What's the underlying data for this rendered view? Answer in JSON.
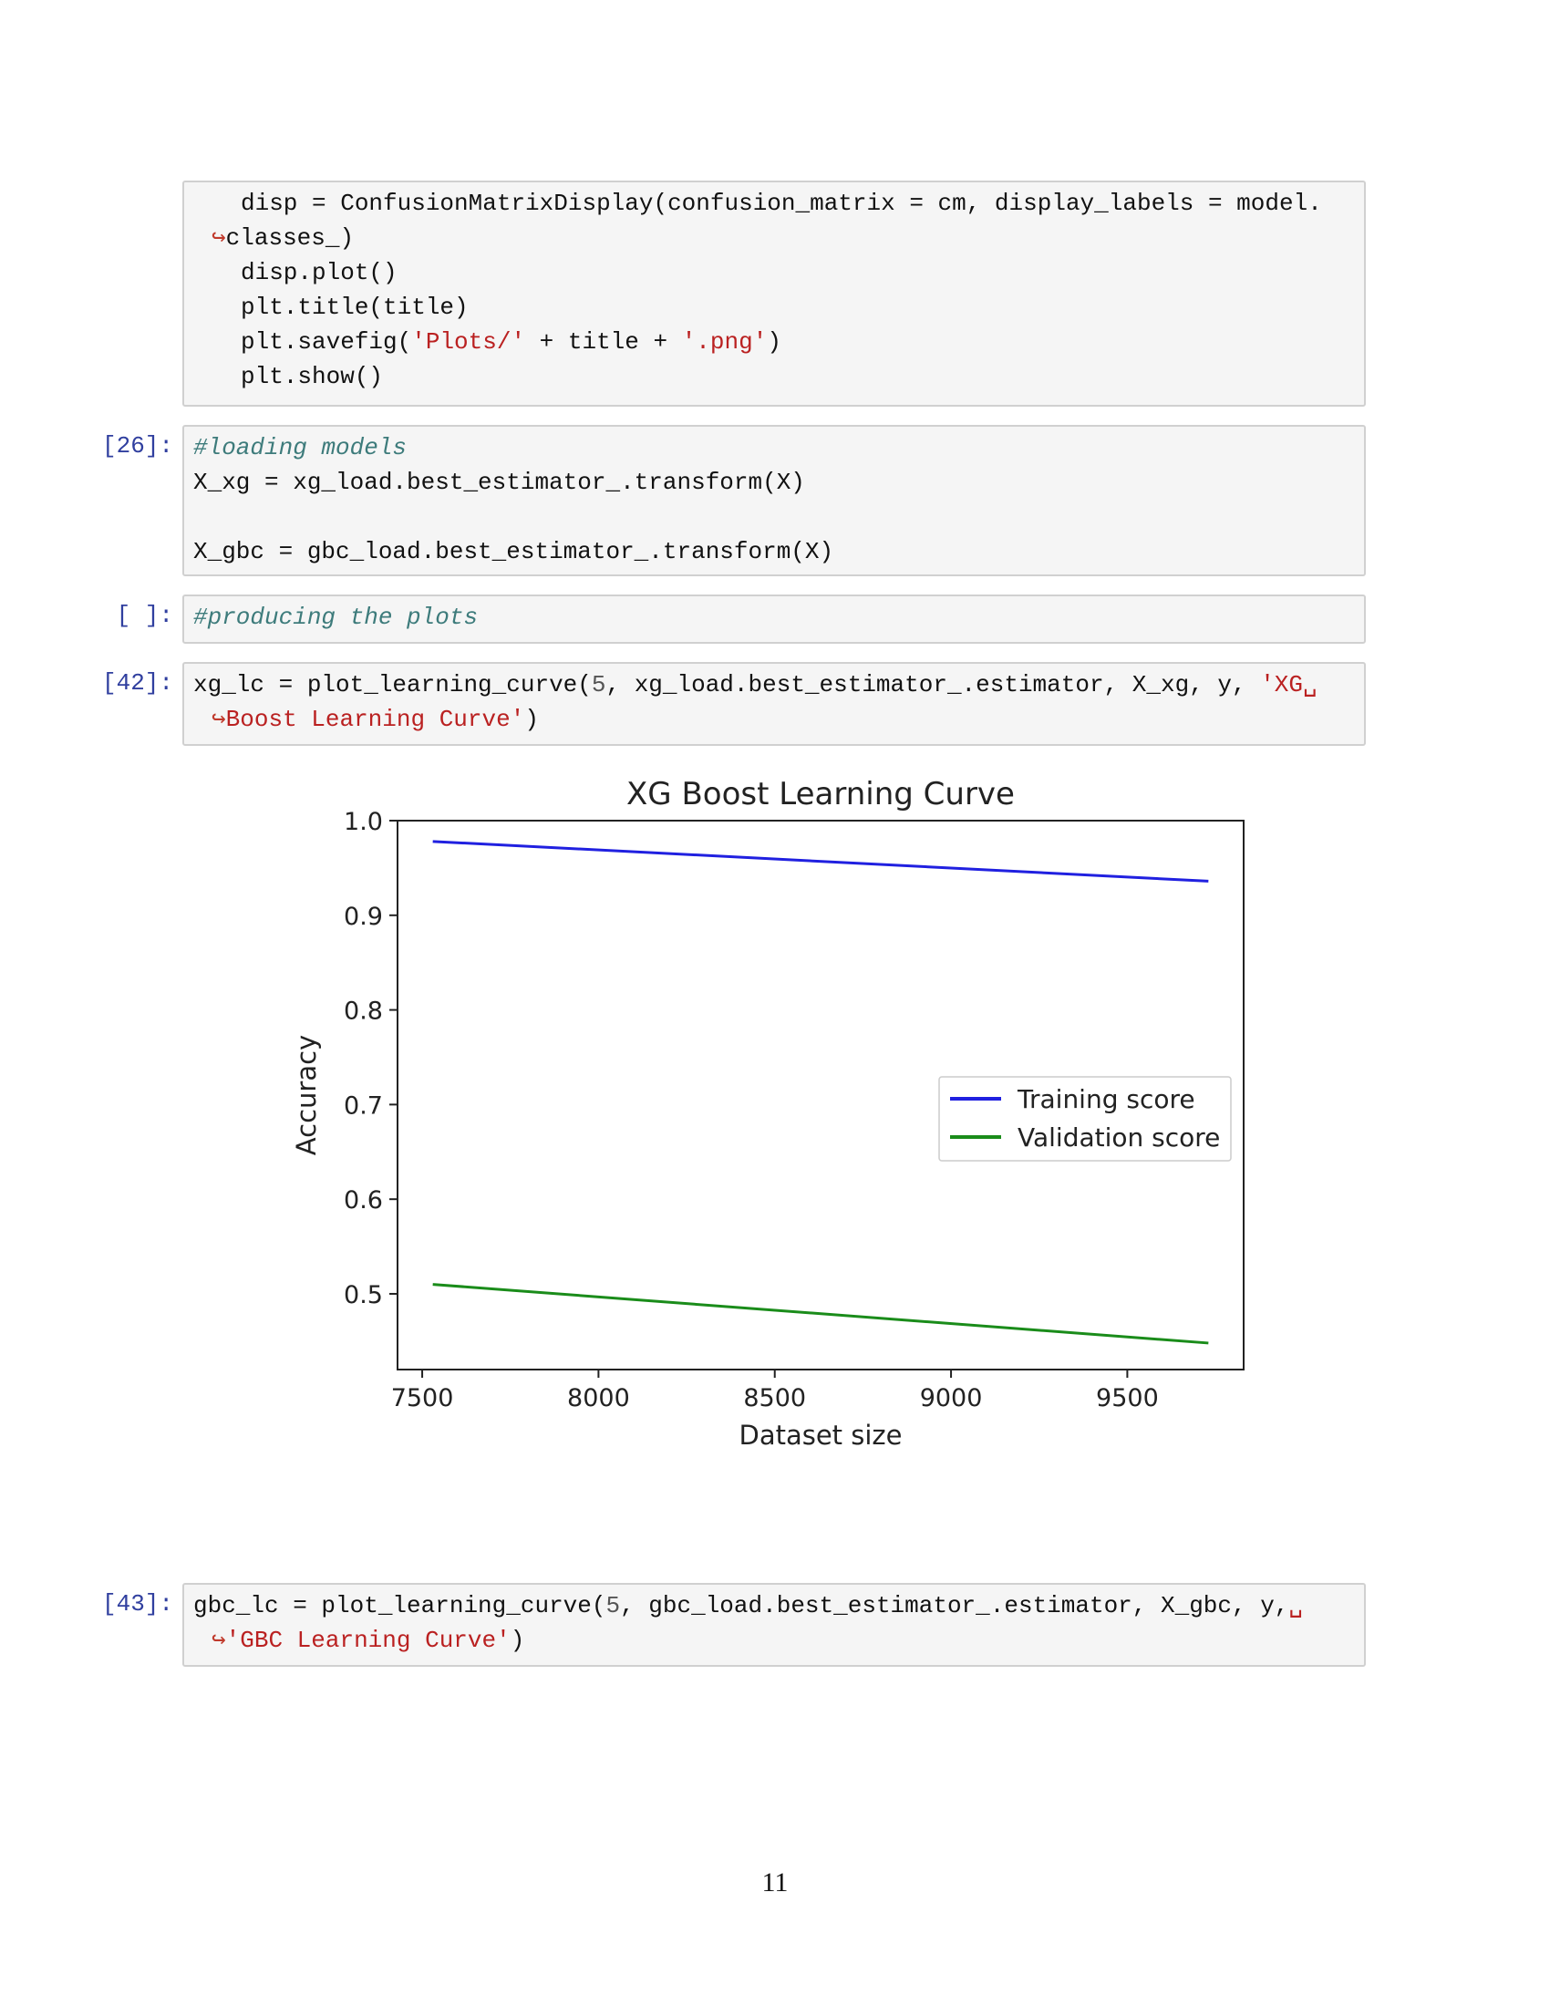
{
  "cells": {
    "cell0": {
      "line1": "disp = ConfusionMatrixDisplay(confusion_matrix = cm, display_labels = model.",
      "cont_arrow": "↪",
      "line1b": "classes_)",
      "line2": "disp.plot()",
      "line3": "plt.title(title)",
      "line4a": "plt.savefig(",
      "line4b": "'Plots/'",
      "line4c": " + title + ",
      "line4d": "'.png'",
      "line4e": ")",
      "line5": "plt.show()"
    },
    "cell26": {
      "prompt": "[26]:",
      "comment": "#loading models",
      "line1": "X_xg = xg_load.best_estimator_.transform(X)",
      "line2": "X_gbc = gbc_load.best_estimator_.transform(X)"
    },
    "cellEmpty": {
      "prompt": "[ ]:",
      "comment": "#producing the plots"
    },
    "cell42": {
      "prompt": "[42]:",
      "line1a": "xg_lc = plot_learning_curve(",
      "line1num": "5",
      "line1b": ", xg_load.best_estimator_.estimator, X_xg, y, ",
      "line1str": "'XG␣",
      "cont_arrow": "↪",
      "line2str": "Boost Learning Curve'",
      "line2b": ")"
    },
    "cell43": {
      "prompt": "[43]:",
      "line1a": "gbc_lc = plot_learning_curve(",
      "line1num": "5",
      "line1b": ", gbc_load.best_estimator_.estimator, X_gbc, y,",
      "line1str": "␣",
      "cont_arrow": "↪",
      "line2str": "'GBC Learning Curve'",
      "line2b": ")"
    }
  },
  "chart_data": {
    "type": "line",
    "title": "XG Boost Learning Curve",
    "xlabel": "Dataset size",
    "ylabel": "Accuracy",
    "xlim": [
      7430,
      9830
    ],
    "ylim": [
      0.42,
      1.0
    ],
    "xticks": [
      7500,
      8000,
      8500,
      9000,
      9500
    ],
    "xtick_labels": [
      "7500",
      "8000",
      "8500",
      "9000",
      "9500"
    ],
    "yticks": [
      0.5,
      0.6,
      0.7,
      0.8,
      0.9,
      1.0
    ],
    "ytick_labels": [
      "0.5",
      "0.6",
      "0.7",
      "0.8",
      "0.9",
      "1.0"
    ],
    "legend_position": "center-right",
    "series": [
      {
        "name": "Training score",
        "color": "#2020e0",
        "x": [
          7530,
          9730
        ],
        "values": [
          0.978,
          0.936
        ]
      },
      {
        "name": "Validation score",
        "color": "#1a8c1a",
        "x": [
          7530,
          9730
        ],
        "values": [
          0.51,
          0.448
        ]
      }
    ]
  },
  "page_number": "11"
}
